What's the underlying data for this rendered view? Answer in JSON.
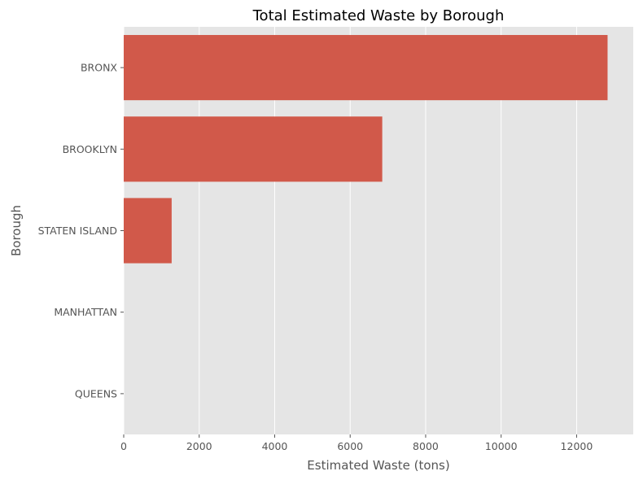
{
  "chart_data": {
    "type": "bar",
    "orientation": "horizontal",
    "title": "Total Estimated Waste by Borough",
    "xlabel": "Estimated Waste (tons)",
    "ylabel": "Borough",
    "categories": [
      "BRONX",
      "BROOKLYN",
      "STATEN ISLAND",
      "MANHATTAN",
      "QUEENS"
    ],
    "values": [
      12820,
      6850,
      1270,
      0,
      0
    ],
    "xlim": [
      0,
      13500
    ],
    "xticks": [
      0,
      2000,
      4000,
      6000,
      8000,
      10000,
      12000
    ],
    "grid": true,
    "bar_color": "#d1594a",
    "background_color": "#e5e5e5",
    "grid_color": "#ffffff"
  }
}
